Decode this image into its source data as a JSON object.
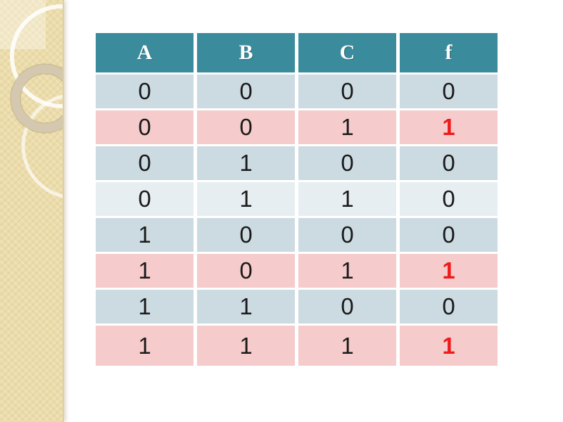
{
  "slide": {
    "background": "#ffffff",
    "sidebar": {
      "color": "#ecdcaa",
      "accent_rect_color": "#f4ecce",
      "ring_color": "#d5c8b1",
      "arc_color": "#ffffff"
    }
  },
  "table": {
    "header_bg": "#3a8c9d",
    "header_text_color": "#ffffff",
    "row_bg_blue": "#ccdbe1",
    "row_bg_light": "#e7eef1",
    "row_bg_pink": "#f5cbcb",
    "digit_color": "#1a1a1a",
    "highlight_color": "#ee1b1b",
    "columns": [
      "A",
      "B",
      "C",
      "f"
    ],
    "rows": [
      {
        "cells": [
          "0",
          "0",
          "0",
          "0"
        ],
        "tone": "blue",
        "highlight_f": false
      },
      {
        "cells": [
          "0",
          "0",
          "1",
          "1"
        ],
        "tone": "pink",
        "highlight_f": true
      },
      {
        "cells": [
          "0",
          "1",
          "0",
          "0"
        ],
        "tone": "blue",
        "highlight_f": false
      },
      {
        "cells": [
          "0",
          "1",
          "1",
          "0"
        ],
        "tone": "light",
        "highlight_f": false
      },
      {
        "cells": [
          "1",
          "0",
          "0",
          "0"
        ],
        "tone": "blue",
        "highlight_f": false
      },
      {
        "cells": [
          "1",
          "0",
          "1",
          "1"
        ],
        "tone": "pink",
        "highlight_f": true
      },
      {
        "cells": [
          "1",
          "1",
          "0",
          "0"
        ],
        "tone": "blue",
        "highlight_f": false
      },
      {
        "cells": [
          "1",
          "1",
          "1",
          "1"
        ],
        "tone": "pink",
        "highlight_f": true
      }
    ]
  }
}
